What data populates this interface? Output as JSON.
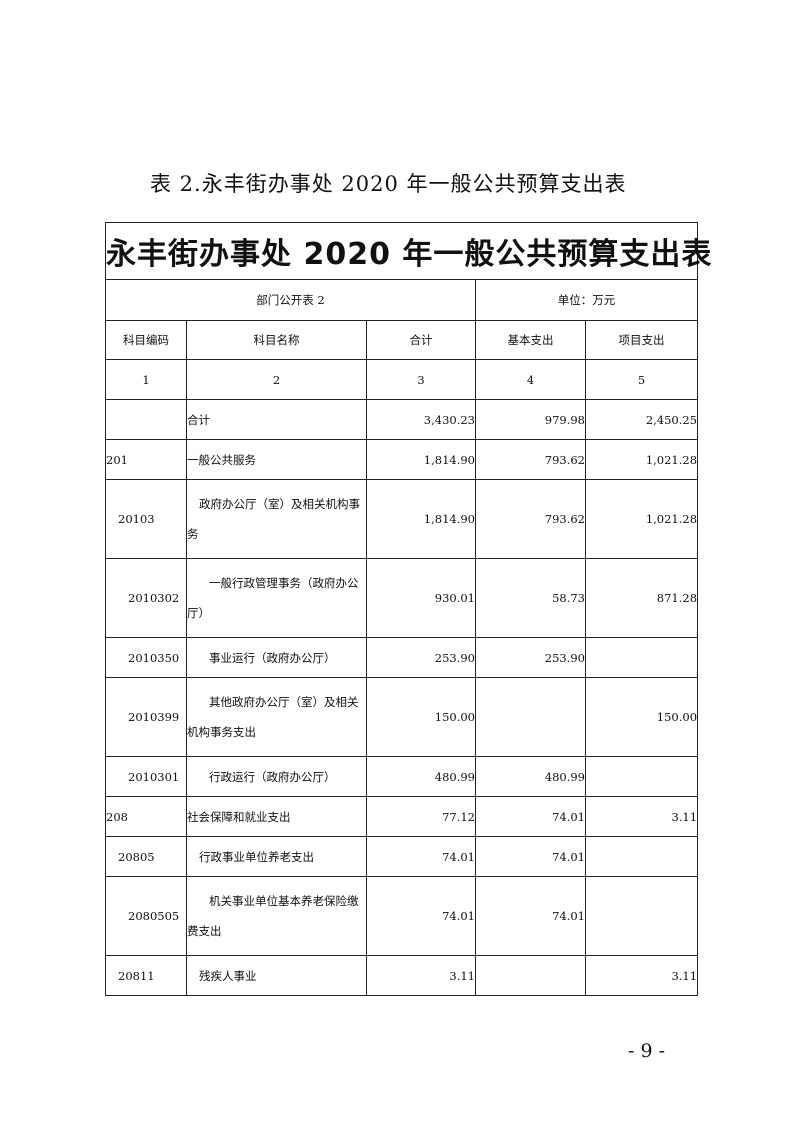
{
  "caption": "表 2.永丰街办事处 2020 年一般公共预算支出表",
  "table_title": "永丰街办事处 2020 年一般公共预算支出表",
  "form_label": "部门公开表 2",
  "unit_label": "单位：万元",
  "headers": [
    "科目编码",
    "科目名称",
    "合计",
    "基本支出",
    "项目支出"
  ],
  "column_index": [
    "1",
    "2",
    "3",
    "4",
    "5"
  ],
  "rows": [
    {
      "code": "",
      "name": "合计",
      "total": "3,430.23",
      "basic": "979.98",
      "project": "2,450.25",
      "level": 0
    },
    {
      "code": "201",
      "name": "一般公共服务",
      "total": "1,814.90",
      "basic": "793.62",
      "project": "1,021.28",
      "level": 0
    },
    {
      "code": "20103",
      "name": "政府办公厅（室）及相关机构事务",
      "total": "1,814.90",
      "basic": "793.62",
      "project": "1,021.28",
      "level": 1
    },
    {
      "code": "2010302",
      "name": "一般行政管理事务（政府办公厅）",
      "total": "930.01",
      "basic": "58.73",
      "project": "871.28",
      "level": 2
    },
    {
      "code": "2010350",
      "name": "事业运行（政府办公厅）",
      "total": "253.90",
      "basic": "253.90",
      "project": "",
      "level": 2
    },
    {
      "code": "2010399",
      "name": "其他政府办公厅（室）及相关机构事务支出",
      "total": "150.00",
      "basic": "",
      "project": "150.00",
      "level": 2
    },
    {
      "code": "2010301",
      "name": "行政运行（政府办公厅）",
      "total": "480.99",
      "basic": "480.99",
      "project": "",
      "level": 2
    },
    {
      "code": "208",
      "name": "社会保障和就业支出",
      "total": "77.12",
      "basic": "74.01",
      "project": "3.11",
      "level": 0
    },
    {
      "code": "20805",
      "name": "行政事业单位养老支出",
      "total": "74.01",
      "basic": "74.01",
      "project": "",
      "level": 1
    },
    {
      "code": "2080505",
      "name": "机关事业单位基本养老保险缴费支出",
      "total": "74.01",
      "basic": "74.01",
      "project": "",
      "level": 2
    },
    {
      "code": "20811",
      "name": "残疾人事业",
      "total": "3.11",
      "basic": "",
      "project": "3.11",
      "level": 1
    }
  ],
  "page_number": "- 9 -"
}
